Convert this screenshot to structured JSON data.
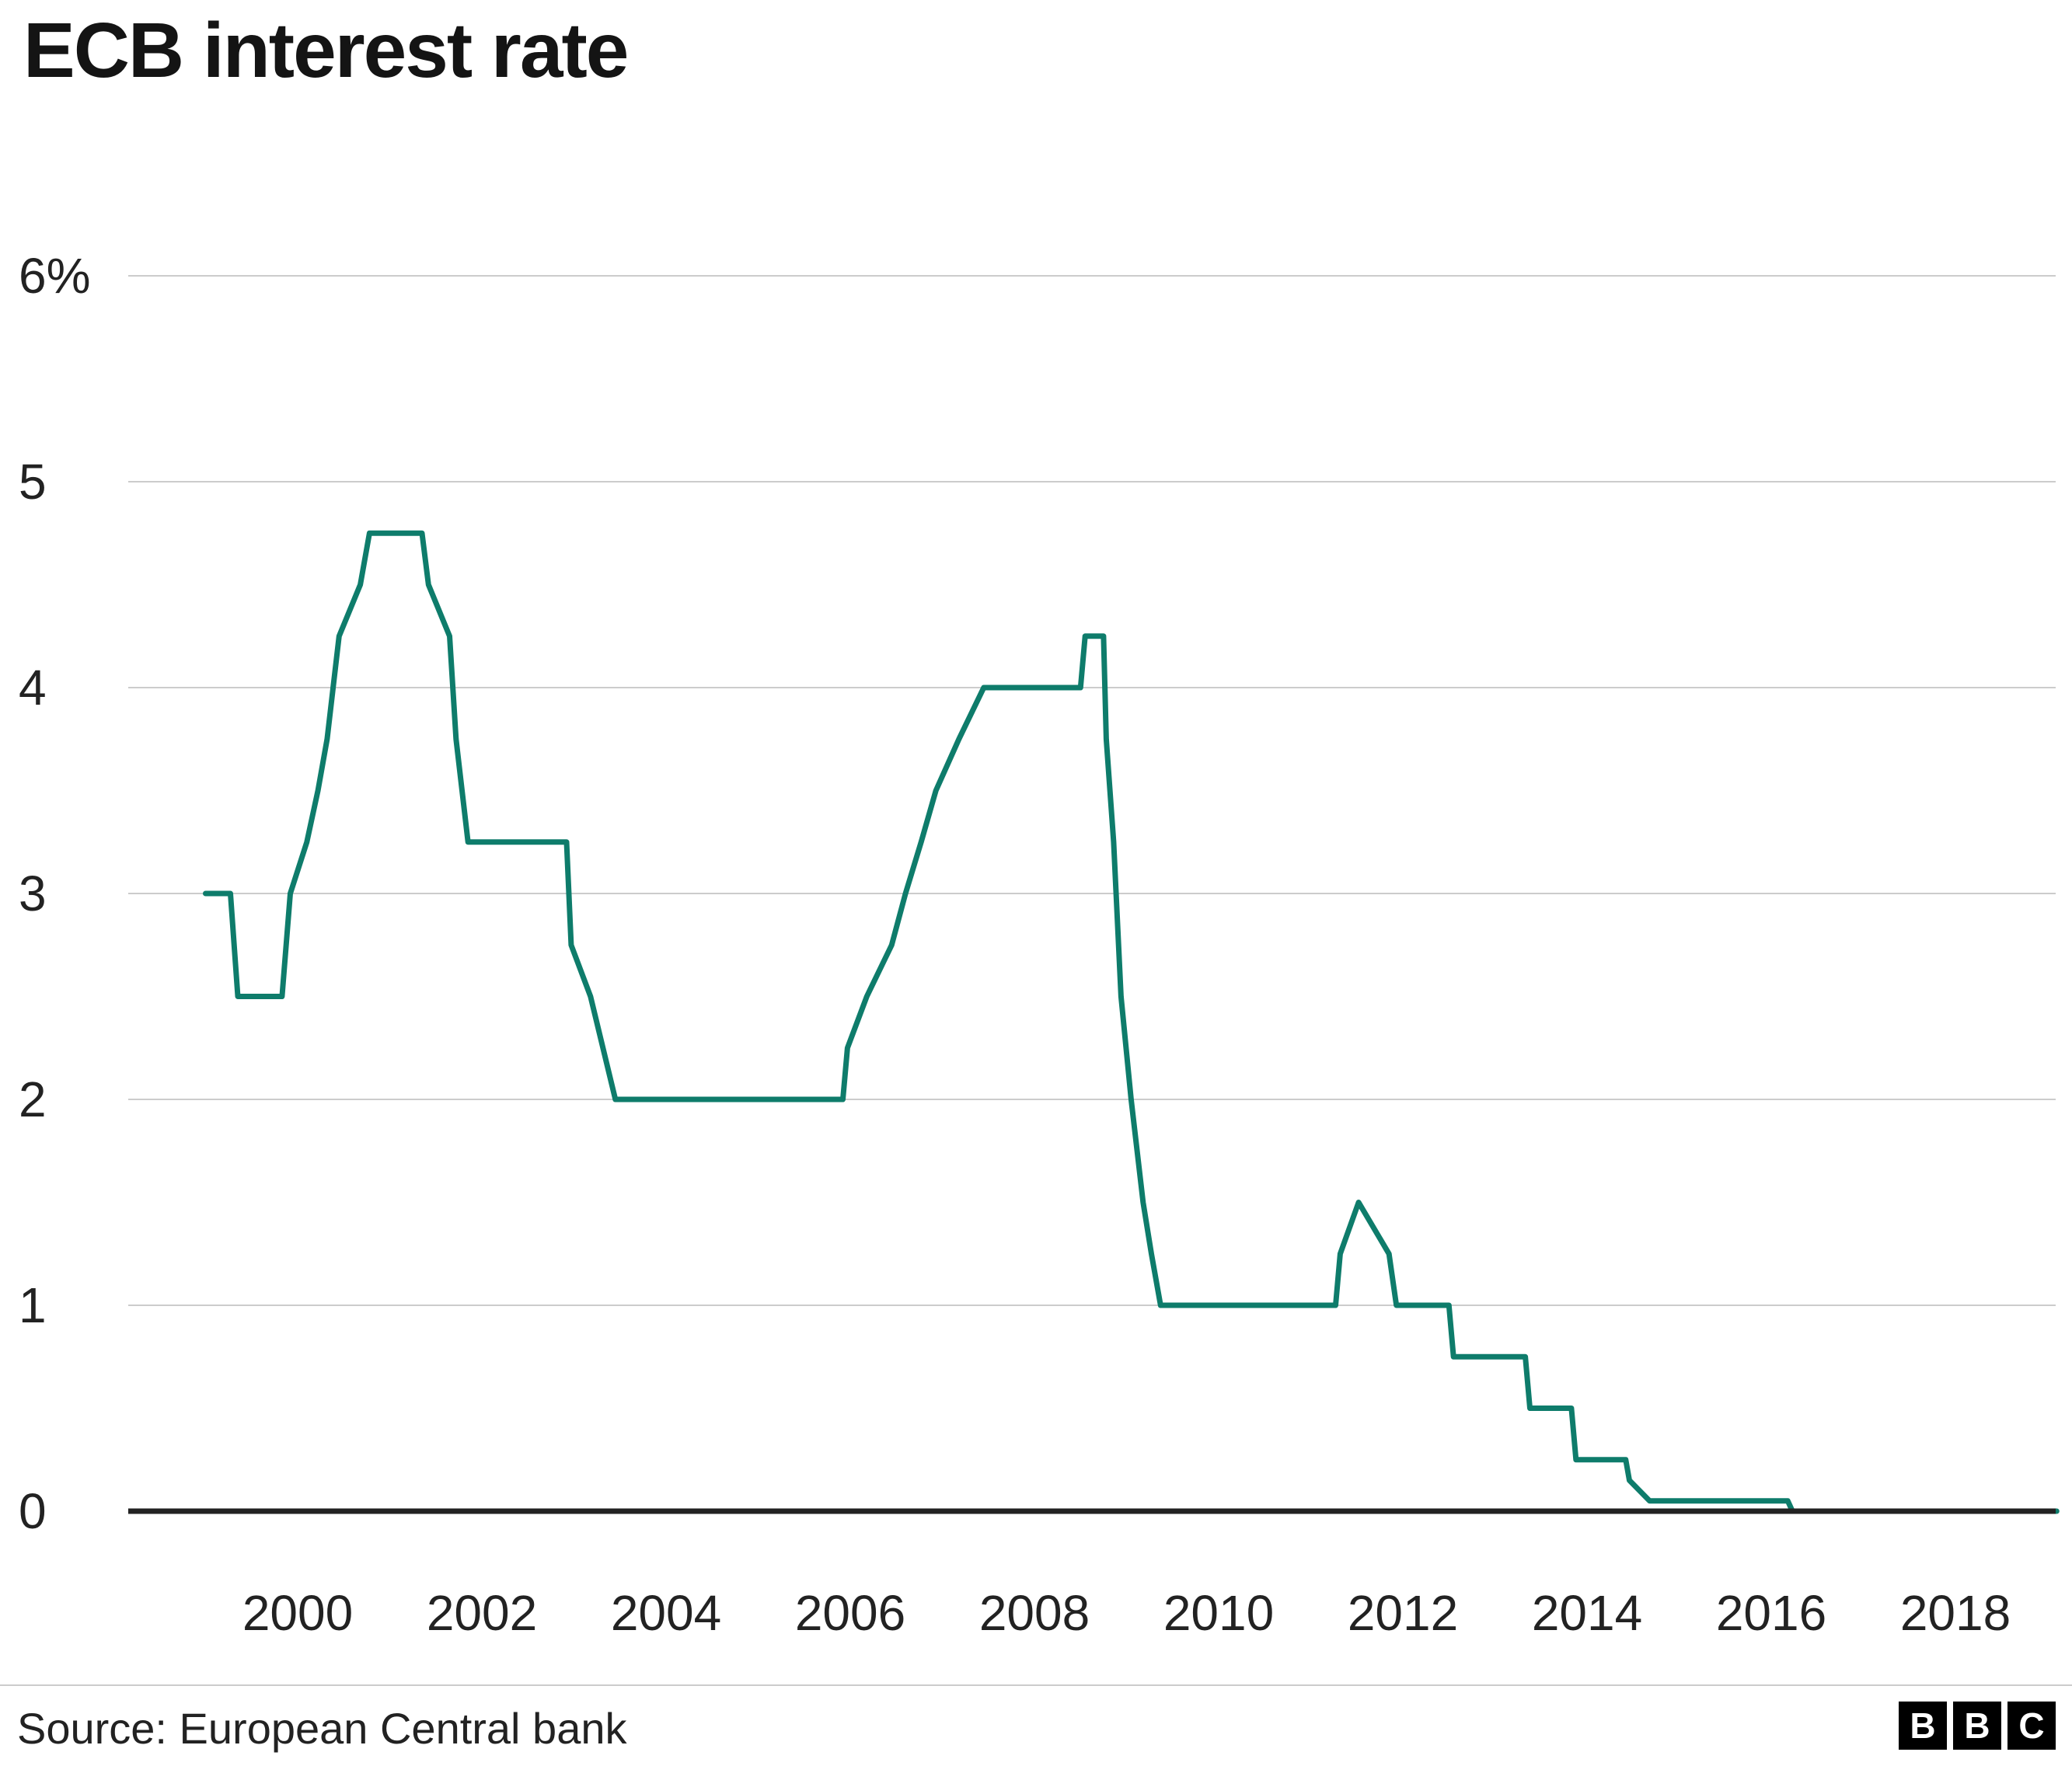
{
  "title": "ECB interest rate",
  "source": "Source: European Central bank",
  "logo": {
    "letters": [
      "B",
      "B",
      "C"
    ]
  },
  "chart_data": {
    "type": "line",
    "title": "ECB interest rate",
    "xlabel": "",
    "ylabel": "",
    "ylim": [
      0,
      6
    ],
    "xlim": [
      1998.7,
      2019.3
    ],
    "grid": true,
    "legend": "none",
    "line_color": "#0E7C6B",
    "grid_color": "#cccccc",
    "axis_color": "#222222",
    "yticks": [
      {
        "value": 0,
        "label": "0"
      },
      {
        "value": 1,
        "label": "1"
      },
      {
        "value": 2,
        "label": "2"
      },
      {
        "value": 3,
        "label": "3"
      },
      {
        "value": 4,
        "label": "4"
      },
      {
        "value": 5,
        "label": "5"
      },
      {
        "value": 6,
        "label": "6%"
      }
    ],
    "xticks": [
      {
        "value": 2000,
        "label": "2000"
      },
      {
        "value": 2002,
        "label": "2002"
      },
      {
        "value": 2004,
        "label": "2004"
      },
      {
        "value": 2006,
        "label": "2006"
      },
      {
        "value": 2008,
        "label": "2008"
      },
      {
        "value": 2010,
        "label": "2010"
      },
      {
        "value": 2012,
        "label": "2012"
      },
      {
        "value": 2014,
        "label": "2014"
      },
      {
        "value": 2016,
        "label": "2016"
      },
      {
        "value": 2018,
        "label": "2018"
      }
    ],
    "series": [
      {
        "name": "ECB interest rate (%)",
        "points": [
          [
            1999.0,
            3.0
          ],
          [
            1999.27,
            3.0
          ],
          [
            1999.35,
            2.5
          ],
          [
            1999.83,
            2.5
          ],
          [
            1999.92,
            3.0
          ],
          [
            2000.1,
            3.25
          ],
          [
            2000.22,
            3.5
          ],
          [
            2000.32,
            3.75
          ],
          [
            2000.45,
            4.25
          ],
          [
            2000.68,
            4.5
          ],
          [
            2000.78,
            4.75
          ],
          [
            2001.35,
            4.75
          ],
          [
            2001.42,
            4.5
          ],
          [
            2001.65,
            4.25
          ],
          [
            2001.72,
            3.75
          ],
          [
            2001.85,
            3.25
          ],
          [
            2002.92,
            3.25
          ],
          [
            2002.97,
            2.75
          ],
          [
            2003.18,
            2.5
          ],
          [
            2003.45,
            2.0
          ],
          [
            2005.92,
            2.0
          ],
          [
            2005.97,
            2.25
          ],
          [
            2006.18,
            2.5
          ],
          [
            2006.45,
            2.75
          ],
          [
            2006.6,
            3.0
          ],
          [
            2006.77,
            3.25
          ],
          [
            2006.93,
            3.5
          ],
          [
            2007.18,
            3.75
          ],
          [
            2007.45,
            4.0
          ],
          [
            2008.5,
            4.0
          ],
          [
            2008.55,
            4.25
          ],
          [
            2008.75,
            4.25
          ],
          [
            2008.78,
            3.75
          ],
          [
            2008.86,
            3.25
          ],
          [
            2008.94,
            2.5
          ],
          [
            2009.05,
            2.0
          ],
          [
            2009.18,
            1.5
          ],
          [
            2009.27,
            1.25
          ],
          [
            2009.37,
            1.0
          ],
          [
            2011.27,
            1.0
          ],
          [
            2011.32,
            1.25
          ],
          [
            2011.52,
            1.5
          ],
          [
            2011.85,
            1.25
          ],
          [
            2011.93,
            1.0
          ],
          [
            2012.5,
            1.0
          ],
          [
            2012.55,
            0.75
          ],
          [
            2013.33,
            0.75
          ],
          [
            2013.38,
            0.5
          ],
          [
            2013.83,
            0.5
          ],
          [
            2013.88,
            0.25
          ],
          [
            2014.42,
            0.25
          ],
          [
            2014.46,
            0.15
          ],
          [
            2014.68,
            0.05
          ],
          [
            2016.18,
            0.05
          ],
          [
            2016.23,
            0.0
          ],
          [
            2019.1,
            0.0
          ]
        ]
      }
    ]
  }
}
